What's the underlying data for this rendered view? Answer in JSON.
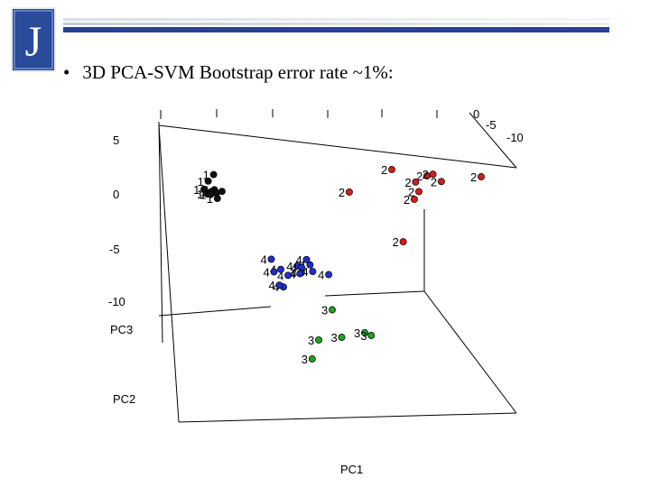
{
  "logo": {
    "letter": "J"
  },
  "slide": {
    "bullet": "•",
    "title": "3D PCA-SVM Bootstrap error rate ~1%:"
  },
  "colors": {
    "logo_blue": "#2a4a9a",
    "class1": "#111111",
    "class2": "#d81b1b",
    "class3": "#1fa31f",
    "class4": "#1f2fd0"
  },
  "chart_data": {
    "type": "scatter",
    "title": "",
    "axes": {
      "x_label": "PC1",
      "y_label": "PC2",
      "z_label": "PC3"
    },
    "z_ticks": [
      "5",
      "0",
      "-5",
      "-10"
    ],
    "y_ticks": [
      "0",
      "-5",
      "-10"
    ],
    "series": [
      {
        "class": "1",
        "color": "#111111",
        "points": [
          [
            -3.0,
            -8.2,
            1.8
          ],
          [
            -3.2,
            -8.0,
            1.2
          ],
          [
            -2.8,
            -7.8,
            -0.5
          ],
          [
            -3.0,
            -8.5,
            0.2
          ],
          [
            -3.3,
            -8.7,
            -0.3
          ],
          [
            -3.1,
            -8.1,
            0.1
          ],
          [
            -2.9,
            -8.4,
            -0.1
          ],
          [
            -3.2,
            -8.9,
            -0.4
          ],
          [
            -3.4,
            -8.3,
            0.3
          ],
          [
            -2.7,
            -8.6,
            0.0
          ]
        ]
      },
      {
        "class": "2",
        "color": "#d81b1b",
        "points": [
          [
            5.0,
            -2.0,
            4.0
          ],
          [
            6.5,
            -1.5,
            3.5
          ],
          [
            6.8,
            -1.0,
            3.8
          ],
          [
            7.2,
            -0.5,
            3.2
          ],
          [
            6.0,
            -1.8,
            2.8
          ],
          [
            6.2,
            -1.2,
            2.0
          ],
          [
            6.0,
            -1.3,
            1.2
          ],
          [
            8.8,
            -0.8,
            3.6
          ],
          [
            3.2,
            -2.5,
            1.6
          ],
          [
            5.5,
            -1.7,
            -3.2
          ]
        ]
      },
      {
        "class": "3",
        "color": "#1fa31f",
        "points": [
          [
            2.0,
            -7.0,
            -11.5
          ],
          [
            1.5,
            -6.5,
            -14.4
          ],
          [
            2.5,
            -6.0,
            -14.0
          ],
          [
            3.5,
            -5.5,
            -13.4
          ],
          [
            3.8,
            -5.2,
            -13.6
          ],
          [
            1.2,
            -6.8,
            -16.4
          ]
        ]
      },
      {
        "class": "4",
        "color": "#1f2fd0",
        "points": [
          [
            -0.5,
            -7.0,
            -6.4
          ],
          [
            1.0,
            -6.5,
            -6.3
          ],
          [
            1.2,
            -6.0,
            -6.7
          ],
          [
            0.6,
            -6.7,
            -7.0
          ],
          [
            0.8,
            -6.5,
            -7.1
          ],
          [
            -0.1,
            -6.9,
            -7.4
          ],
          [
            -0.4,
            -7.1,
            -7.7
          ],
          [
            1.3,
            -6.1,
            -7.4
          ],
          [
            0.8,
            -6.4,
            -7.6
          ],
          [
            0.0,
            -7.0,
            -9.2
          ],
          [
            2.0,
            -5.7,
            -7.6
          ],
          [
            0.7,
            -6.8,
            -7.8
          ],
          [
            0.2,
            -6.9,
            -8.0
          ],
          [
            -0.2,
            -7.3,
            -9.1
          ]
        ]
      }
    ]
  }
}
